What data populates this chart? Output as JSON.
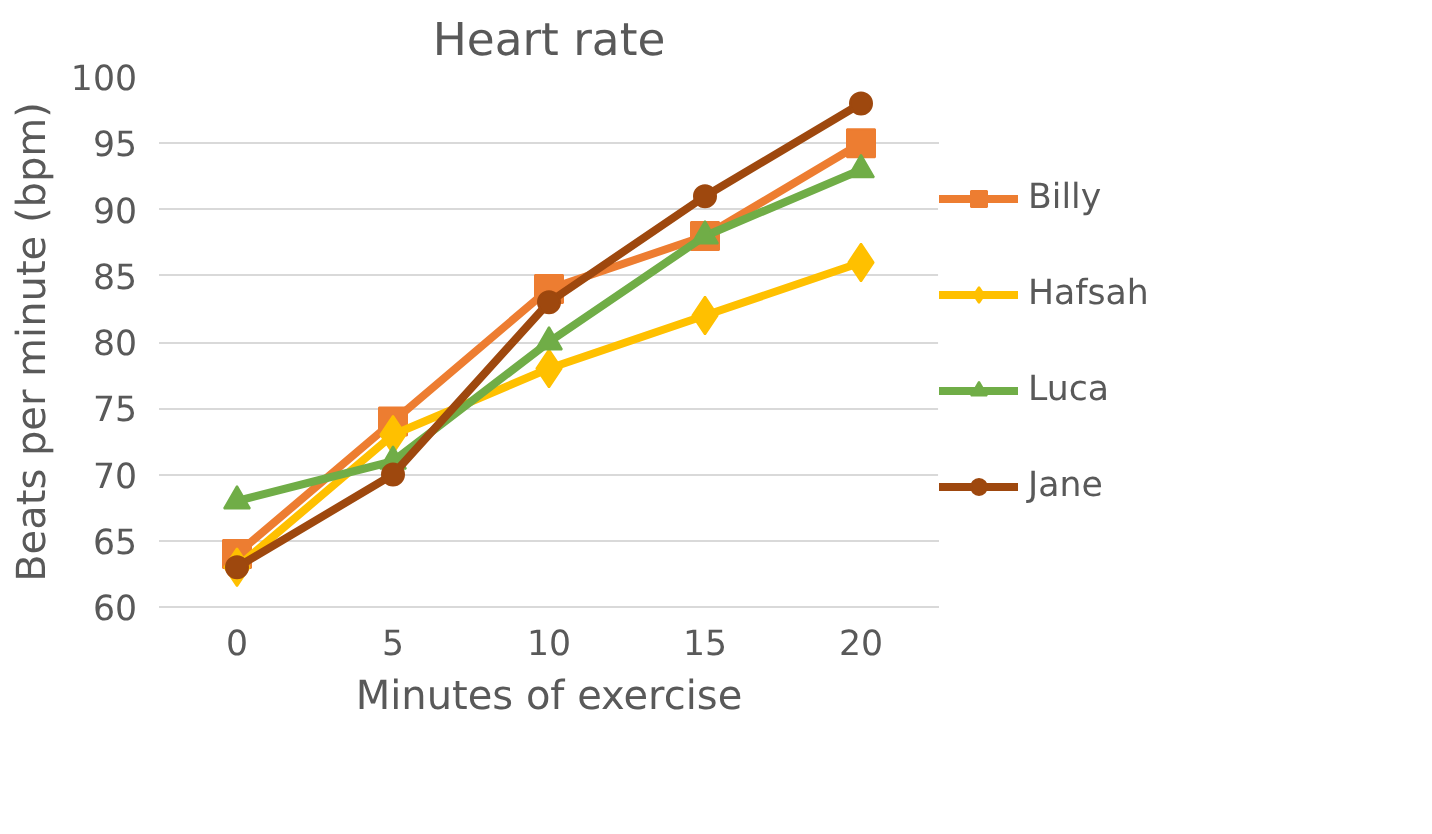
{
  "chart_data": {
    "type": "line",
    "title": "Heart rate",
    "xlabel": "Minutes of exercise",
    "ylabel": "Beats per minute (bpm)",
    "categories": [
      "0",
      "5",
      "10",
      "15",
      "20"
    ],
    "series": [
      {
        "name": "Billy",
        "color": "#ed7d31",
        "marker": "square",
        "values": [
          64,
          74,
          84,
          88,
          95
        ]
      },
      {
        "name": "Hafsah",
        "color": "#ffc000",
        "marker": "diamond",
        "values": [
          63,
          73,
          78,
          82,
          86
        ]
      },
      {
        "name": "Luca",
        "color": "#70ad47",
        "marker": "triangle",
        "values": [
          68,
          71,
          80,
          88,
          93
        ]
      },
      {
        "name": "Jane",
        "color": "#9e480e",
        "marker": "circle",
        "values": [
          63,
          70,
          83,
          91,
          98
        ]
      }
    ],
    "ylim": [
      60,
      100
    ],
    "yticks": [
      60,
      65,
      70,
      75,
      80,
      85,
      90,
      95,
      100
    ],
    "grid": "y",
    "legend": "right",
    "line_style": "solid"
  }
}
